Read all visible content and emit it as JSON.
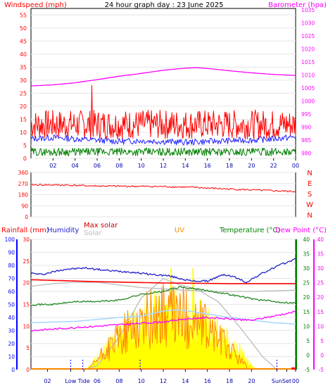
{
  "title": "24 hour graph day : 23 June 2025",
  "colors": {
    "background": "#ffffff",
    "frame": "#000000",
    "grid": "#e6e6e6",
    "windspeed": "#ff0000",
    "wind_avg": "#2020ff",
    "wind_low": "#008000",
    "barometer": "#ff00ff",
    "direction": "#ff0000",
    "rainfall": "#ff0000",
    "humidity": "#2020cc",
    "max_solar": "#bbbbbb",
    "solar": "#ffff00",
    "uv": "#ff8800",
    "temperature": "#228822",
    "dew_point": "#ff00ff",
    "light_blue": "#a8d8ff",
    "axis_blue": "#0000ff",
    "axis_green": "#008000"
  },
  "chart_data": [
    {
      "type": "line",
      "panel": "wind_pressure",
      "left_axis_title": "Windspeed (mph)",
      "right_axis_title": "Barometer (hpa)",
      "x_tick_labels": [
        "02",
        "04",
        "06",
        "08",
        "10",
        "12",
        "14",
        "16",
        "18",
        "20",
        "22",
        "00"
      ],
      "ylim": [
        0,
        57.5
      ],
      "y_ticks": [
        0,
        5,
        10,
        15,
        20,
        25,
        30,
        35,
        40,
        45,
        50,
        55
      ],
      "y2lim": [
        978,
        1035.5
      ],
      "y2_ticks": [
        980,
        985,
        990,
        995,
        1000,
        1005,
        1010,
        1015,
        1020,
        1025,
        1030,
        1035
      ],
      "series": [
        {
          "key": "barometer",
          "axis": "right",
          "hours": [
            0,
            2,
            4,
            6,
            8,
            10,
            12,
            14,
            15,
            16,
            18,
            20,
            22,
            24
          ],
          "values": [
            1005.8,
            1006.2,
            1007.0,
            1008.2,
            1009.5,
            1010.6,
            1011.8,
            1012.6,
            1012.8,
            1012.5,
            1011.6,
            1010.8,
            1010.2,
            1009.8
          ]
        },
        {
          "key": "wind_gust",
          "axis": "left",
          "profile": "noisy",
          "mean": 13,
          "spread": 8,
          "peaks": [
            {
              "hour": 5.5,
              "value": 28
            }
          ]
        },
        {
          "key": "wind_avg",
          "axis": "left",
          "hours": [
            0,
            2,
            4,
            6,
            8,
            10,
            12,
            14,
            16,
            18,
            20,
            22,
            24
          ],
          "values": [
            7.5,
            8,
            7.5,
            7,
            6.5,
            6.8,
            6.5,
            6.2,
            6.5,
            6.8,
            7,
            7.5,
            8.2
          ]
        },
        {
          "key": "wind_low",
          "axis": "left",
          "profile": "noisy",
          "mean": 2.5,
          "spread": 3
        }
      ]
    },
    {
      "type": "line",
      "panel": "wind_direction",
      "ylim": [
        0,
        360
      ],
      "y_ticks": [
        0,
        90,
        180,
        270,
        360
      ],
      "y_tick_labels": [
        "0",
        "90",
        "180",
        "270",
        "360"
      ],
      "compass_labels": [
        "N",
        "W",
        "S",
        "E",
        "N"
      ],
      "series": [
        {
          "key": "direction",
          "hours": [
            0,
            3,
            6,
            9,
            12,
            15,
            18,
            21,
            24
          ],
          "values": [
            260,
            258,
            250,
            248,
            246,
            238,
            225,
            215,
            205
          ]
        }
      ]
    },
    {
      "type": "line",
      "panel": "rain_temp",
      "legend": [
        "Rainfall (mm)",
        "Humidity",
        "Max solar",
        "Solar",
        "UV",
        "Temperature (°C)",
        "Dew Point (°C)"
      ],
      "axes": {
        "far_left": {
          "range": [
            0,
            100
          ],
          "ticks": [
            0,
            10,
            20,
            30,
            40,
            50,
            60,
            70,
            80,
            90,
            100
          ]
        },
        "left": {
          "range": [
            0,
            30
          ],
          "ticks": [
            0,
            5,
            10,
            15,
            20,
            25,
            30
          ]
        },
        "right": {
          "range": [
            -5,
            40
          ],
          "ticks": [
            -5,
            0,
            5,
            10,
            15,
            20,
            25,
            30,
            35,
            40
          ]
        },
        "far_right": {
          "range": [
            -5,
            40
          ],
          "ticks": [
            -5,
            0,
            5,
            10,
            15,
            20,
            25,
            30,
            35,
            40
          ]
        }
      },
      "x_tick_labels": [
        "02",
        "Low",
        "Tide",
        "06",
        "08",
        "10",
        "12",
        "14",
        "16",
        "18",
        "20",
        "Sun",
        "Set",
        "00"
      ],
      "x_tick_hours": [
        1.5,
        3.6,
        4.8,
        6,
        8,
        10,
        12,
        14,
        16,
        18,
        20,
        22.3,
        23.2,
        24
      ],
      "series": [
        {
          "key": "humidity",
          "axis": "far_left",
          "hours": [
            0,
            1,
            3,
            5,
            7,
            9,
            11,
            12.5,
            13.5,
            14.5,
            16,
            17.5,
            18.5,
            19.5,
            21,
            22.5,
            24
          ],
          "values": [
            74,
            73,
            77,
            78,
            76,
            75,
            73,
            72,
            70,
            68,
            68,
            73,
            71,
            67,
            74,
            80,
            85
          ]
        },
        {
          "key": "rain_line",
          "axis": "far_left",
          "hours": [
            0,
            6,
            12,
            18,
            24
          ],
          "values": [
            69,
            67.5,
            66.5,
            66,
            66
          ]
        },
        {
          "key": "max_solar",
          "axis": "far_left",
          "hours": [
            0,
            2,
            4,
            6,
            8,
            10,
            12,
            14,
            16,
            18,
            20,
            22,
            24
          ],
          "values": [
            64,
            66,
            67,
            67,
            65,
            63,
            62,
            61,
            60,
            60,
            60,
            60.5,
            61
          ]
        },
        {
          "key": "solar_curve",
          "axis": "far_left",
          "hours": [
            4.9,
            6,
            8,
            10,
            12,
            13.5,
            15,
            17,
            19,
            21,
            22.3
          ],
          "values": [
            0,
            3,
            25,
            55,
            70,
            65,
            62,
            52,
            32,
            10,
            0
          ]
        },
        {
          "key": "light_blue_line",
          "axis": "far_left",
          "hours": [
            0,
            4,
            8,
            10,
            12,
            13.5,
            15,
            16.5,
            18,
            20,
            22,
            24
          ],
          "values": [
            36,
            37,
            40,
            41,
            45,
            46,
            44,
            42,
            40,
            38,
            36,
            35
          ]
        },
        {
          "key": "temperature",
          "axis": "right",
          "hours": [
            0,
            2,
            4,
            6,
            8,
            10,
            12,
            13.5,
            15,
            16.5,
            18,
            20,
            22,
            24
          ],
          "values": [
            17.5,
            17.5,
            18.5,
            18.5,
            19,
            21,
            22,
            23.5,
            22.8,
            22,
            21,
            19.5,
            18.5,
            18
          ]
        },
        {
          "key": "dew_point",
          "axis": "right",
          "hours": [
            0,
            2,
            4,
            6,
            8,
            10,
            12,
            14,
            16,
            18,
            20,
            22,
            24
          ],
          "values": [
            8.5,
            9,
            9.5,
            10,
            10.5,
            11,
            11.5,
            12.5,
            13,
            12.5,
            12,
            13.5,
            15
          ]
        },
        {
          "key": "solar",
          "axis": "far_left",
          "type": "area",
          "profile": "noisy",
          "from_hour": 5,
          "to_hour": 20.5,
          "peaks": [
            12.7,
            14.7
          ]
        },
        {
          "key": "uv",
          "axis": "left",
          "profile": "noisy",
          "from_hour": 5.2,
          "to_hour": 19.8,
          "peak_value": 25
        },
        {
          "key": "rainfall_dots",
          "axis": "far_left",
          "hours": [
            3.6,
            4.7,
            9.9,
            22.3
          ],
          "values": [
            0,
            0,
            0,
            0
          ]
        }
      ]
    }
  ]
}
